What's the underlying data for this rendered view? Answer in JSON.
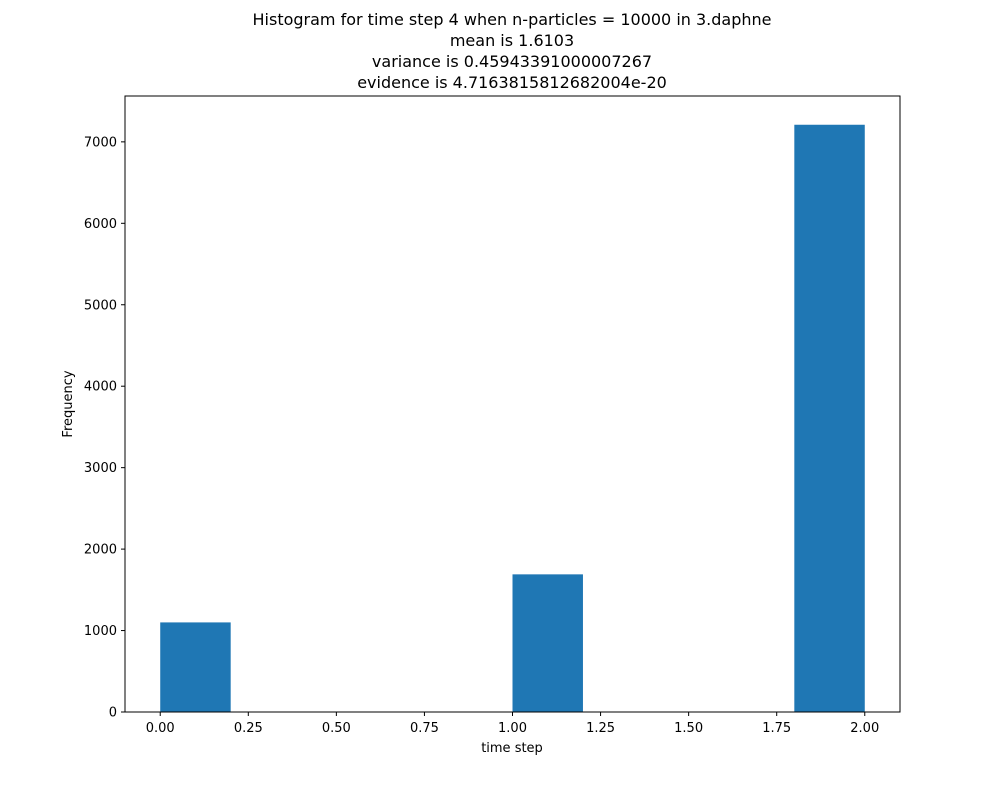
{
  "chart_data": {
    "type": "bar",
    "title_lines": [
      "Histogram for time step 4 when n-particles = 10000 in 3.daphne",
      "mean is 1.6103",
      "variance is 0.45943391000007267",
      "evidence is 4.7163815812682004e-20"
    ],
    "xlabel": "time step",
    "ylabel": "Frequency",
    "xlim": [
      -0.1,
      2.1
    ],
    "ylim": [
      0,
      7563
    ],
    "x_ticks": [
      0.0,
      0.25,
      0.5,
      0.75,
      1.0,
      1.25,
      1.5,
      1.75,
      2.0
    ],
    "x_tick_labels": [
      "0.00",
      "0.25",
      "0.50",
      "0.75",
      "1.00",
      "1.25",
      "1.50",
      "1.75",
      "2.00"
    ],
    "y_ticks": [
      0,
      1000,
      2000,
      3000,
      4000,
      5000,
      6000,
      7000
    ],
    "y_tick_labels": [
      "0",
      "1000",
      "2000",
      "3000",
      "4000",
      "5000",
      "6000",
      "7000"
    ],
    "bins": [
      {
        "x0": 0.0,
        "x1": 0.2,
        "value": 1100
      },
      {
        "x0": 0.2,
        "x1": 0.4,
        "value": 0
      },
      {
        "x0": 0.4,
        "x1": 0.6,
        "value": 0
      },
      {
        "x0": 0.6,
        "x1": 0.8,
        "value": 0
      },
      {
        "x0": 0.8,
        "x1": 1.0,
        "value": 0
      },
      {
        "x0": 1.0,
        "x1": 1.2,
        "value": 1690
      },
      {
        "x0": 1.2,
        "x1": 1.4,
        "value": 0
      },
      {
        "x0": 1.4,
        "x1": 1.6,
        "value": 0
      },
      {
        "x0": 1.6,
        "x1": 1.8,
        "value": 0
      },
      {
        "x0": 1.8,
        "x1": 2.0,
        "value": 7210
      }
    ],
    "bar_color": "#1f77b4",
    "grid": false,
    "legend": "none"
  }
}
